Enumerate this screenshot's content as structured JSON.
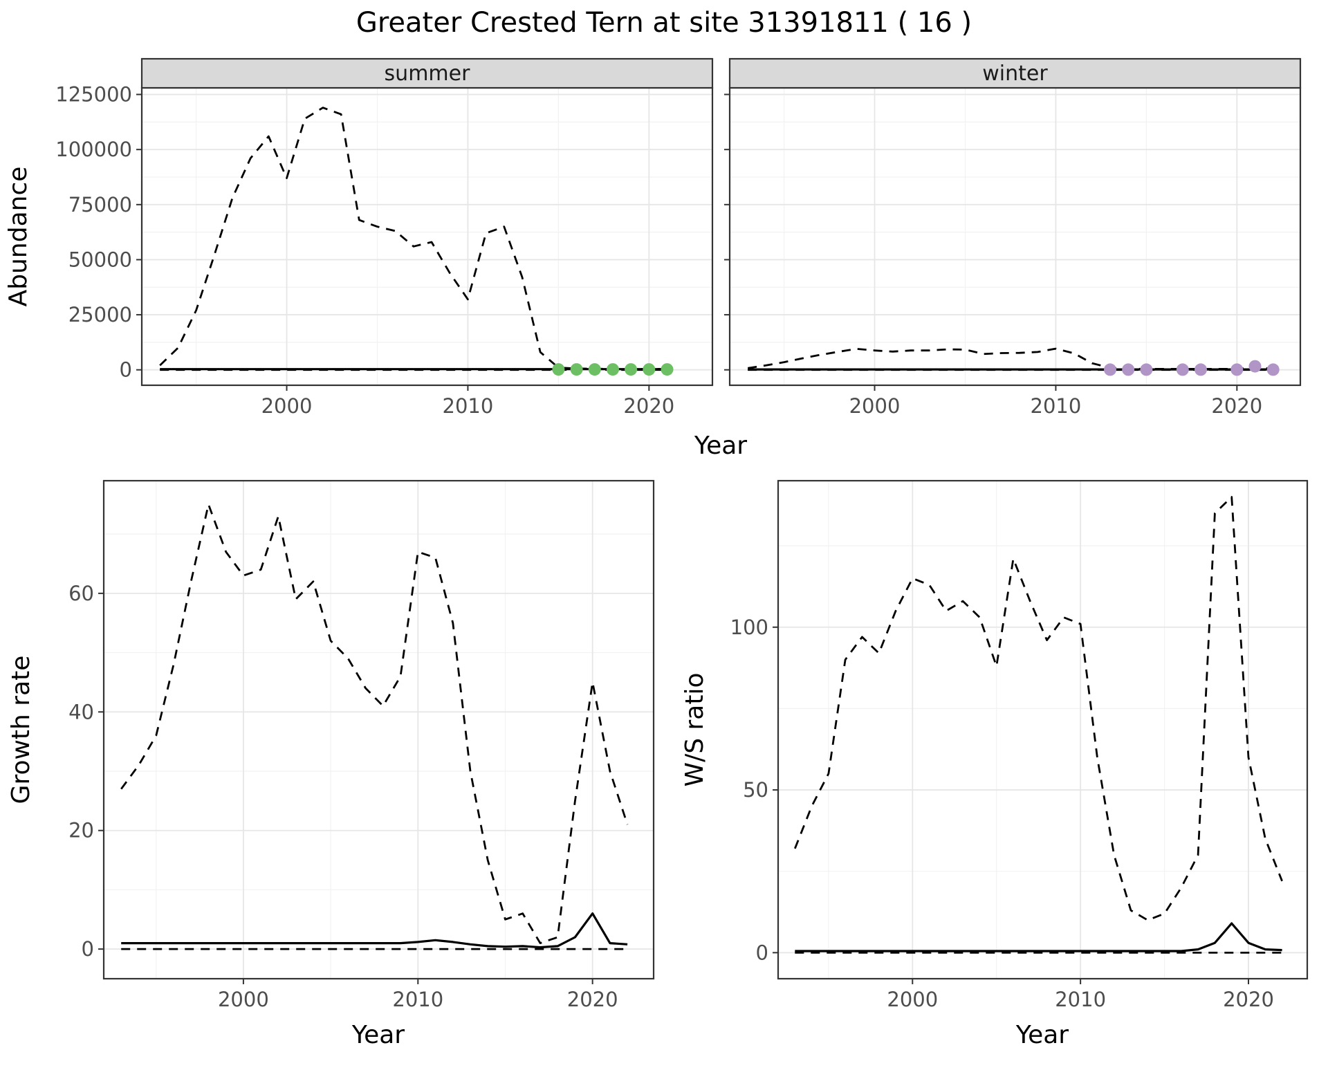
{
  "title": "Greater Crested Tern at site 31391811 ( 16 )",
  "colors": {
    "strip_fill": "#d9d9d9",
    "panel_border": "#333333",
    "grid_major": "#e6e6e6",
    "grid_minor": "#f2f2f2",
    "line": "#000000",
    "tick_text": "#4d4d4d",
    "summer_points": "#6dbf63",
    "winter_points": "#b295c7"
  },
  "chart_data": [
    {
      "id": "abundance-summer",
      "type": "line",
      "strip": "summer",
      "xlabel": "Year",
      "ylabel": "Abundance",
      "x_domain": [
        1992,
        2023.5
      ],
      "y_domain": [
        -7000,
        128000
      ],
      "xticks": [
        2000,
        2010,
        2020
      ],
      "xtick_labels": [
        "2000",
        "2010",
        "2020"
      ],
      "yticks": [
        0,
        25000,
        50000,
        75000,
        100000,
        125000
      ],
      "ytick_labels": [
        "0",
        "25000",
        "50000",
        "75000",
        "100000",
        "125000"
      ],
      "x_minor": [
        1995,
        2005,
        2015
      ],
      "y_minor": [
        12500,
        37500,
        62500,
        87500,
        112500
      ],
      "series": [
        {
          "name": "upper-dashed-line",
          "style": "dashed",
          "x": [
            1993,
            1994,
            1995,
            1996,
            1997,
            1998,
            1999,
            2000,
            2001,
            2002,
            2003,
            2004,
            2005,
            2006,
            2007,
            2008,
            2009,
            2010,
            2011,
            2012,
            2013,
            2014,
            2015,
            2016,
            2017,
            2018,
            2019,
            2020,
            2021
          ],
          "y": [
            2000,
            10000,
            27000,
            52000,
            78000,
            96000,
            106000,
            87000,
            114000,
            119000,
            116000,
            68000,
            65000,
            63000,
            56000,
            58000,
            44000,
            32000,
            62000,
            65000,
            42000,
            8000,
            1000,
            600,
            500,
            400,
            400,
            400,
            400
          ]
        },
        {
          "name": "solid-line",
          "style": "solid",
          "x": [
            1993,
            1994,
            1995,
            1996,
            1997,
            1998,
            1999,
            2000,
            2001,
            2002,
            2003,
            2004,
            2005,
            2006,
            2007,
            2008,
            2009,
            2010,
            2011,
            2012,
            2013,
            2014,
            2015,
            2016,
            2017,
            2018,
            2019,
            2020,
            2021
          ],
          "y": [
            300,
            300,
            300,
            300,
            300,
            300,
            300,
            300,
            300,
            300,
            300,
            300,
            300,
            300,
            300,
            300,
            300,
            300,
            300,
            300,
            300,
            300,
            300,
            300,
            300,
            300,
            300,
            300,
            300
          ]
        },
        {
          "name": "lower-dashed-line",
          "style": "dashed",
          "x": [
            1993,
            1994,
            1995,
            1996,
            1997,
            1998,
            1999,
            2000,
            2001,
            2002,
            2003,
            2004,
            2005,
            2006,
            2007,
            2008,
            2009,
            2010,
            2011,
            2012,
            2013,
            2014,
            2015,
            2016,
            2017,
            2018,
            2019,
            2020,
            2021
          ],
          "y": [
            0,
            0,
            0,
            0,
            0,
            0,
            0,
            0,
            0,
            0,
            0,
            0,
            0,
            0,
            0,
            0,
            0,
            0,
            0,
            0,
            0,
            0,
            0,
            0,
            0,
            0,
            0,
            0,
            0
          ]
        }
      ],
      "points": [
        {
          "name": "summer-survey-point",
          "color": "#6dbf63",
          "x": [
            2015,
            2016,
            2017,
            2018,
            2019,
            2020,
            2021
          ],
          "y": [
            200,
            200,
            200,
            200,
            200,
            200,
            200
          ]
        }
      ]
    },
    {
      "id": "abundance-winter",
      "type": "line",
      "strip": "winter",
      "xlabel": "Year",
      "ylabel": "Abundance",
      "x_domain": [
        1992,
        2023.5
      ],
      "y_domain": [
        -7000,
        128000
      ],
      "xticks": [
        2000,
        2010,
        2020
      ],
      "xtick_labels": [
        "2000",
        "2010",
        "2020"
      ],
      "yticks": [
        0,
        25000,
        50000,
        75000,
        100000,
        125000
      ],
      "ytick_labels": [
        "0",
        "25000",
        "50000",
        "75000",
        "100000",
        "125000"
      ],
      "x_minor": [
        1995,
        2005,
        2015
      ],
      "y_minor": [
        12500,
        37500,
        62500,
        87500,
        112500
      ],
      "series": [
        {
          "name": "upper-dashed-line",
          "style": "dashed",
          "x": [
            1993,
            1994,
            1995,
            1996,
            1997,
            1998,
            1999,
            2000,
            2001,
            2002,
            2003,
            2004,
            2005,
            2006,
            2007,
            2008,
            2009,
            2010,
            2011,
            2012,
            2013,
            2014,
            2015,
            2016,
            2017,
            2018,
            2019,
            2020,
            2021,
            2022
          ],
          "y": [
            800,
            2000,
            3500,
            5200,
            6800,
            8200,
            9500,
            8800,
            8300,
            8800,
            8800,
            9300,
            9200,
            7200,
            7600,
            7700,
            8100,
            9600,
            7500,
            3000,
            900,
            500,
            400,
            400,
            400,
            400,
            400,
            400,
            1200,
            400
          ]
        },
        {
          "name": "solid-line",
          "style": "solid",
          "x": [
            1993,
            1994,
            1995,
            1996,
            1997,
            1998,
            1999,
            2000,
            2001,
            2002,
            2003,
            2004,
            2005,
            2006,
            2007,
            2008,
            2009,
            2010,
            2011,
            2012,
            2013,
            2014,
            2015,
            2016,
            2017,
            2018,
            2019,
            2020,
            2021,
            2022
          ],
          "y": [
            200,
            200,
            200,
            200,
            200,
            200,
            200,
            200,
            200,
            200,
            200,
            200,
            200,
            200,
            200,
            200,
            200,
            200,
            200,
            200,
            200,
            200,
            200,
            200,
            200,
            200,
            200,
            200,
            200,
            200
          ]
        },
        {
          "name": "lower-dashed-line",
          "style": "dashed",
          "x": [
            1993,
            1994,
            1995,
            1996,
            1997,
            1998,
            1999,
            2000,
            2001,
            2002,
            2003,
            2004,
            2005,
            2006,
            2007,
            2008,
            2009,
            2010,
            2011,
            2012,
            2013,
            2014,
            2015,
            2016,
            2017,
            2018,
            2019,
            2020,
            2021,
            2022
          ],
          "y": [
            0,
            0,
            0,
            0,
            0,
            0,
            0,
            0,
            0,
            0,
            0,
            0,
            0,
            0,
            0,
            0,
            0,
            0,
            0,
            0,
            0,
            0,
            0,
            0,
            0,
            0,
            0,
            0,
            0,
            0
          ]
        }
      ],
      "points": [
        {
          "name": "winter-survey-point",
          "color": "#b295c7",
          "x": [
            2013,
            2014,
            2015,
            2017,
            2018,
            2020,
            2021,
            2022
          ],
          "y": [
            100,
            100,
            100,
            100,
            100,
            100,
            1600,
            100
          ]
        }
      ]
    },
    {
      "id": "growth-rate",
      "type": "line",
      "xlabel": "Year",
      "ylabel": "Growth rate",
      "x_domain": [
        1992,
        2023.5
      ],
      "y_domain": [
        -5,
        79
      ],
      "xticks": [
        2000,
        2010,
        2020
      ],
      "xtick_labels": [
        "2000",
        "2010",
        "2020"
      ],
      "yticks": [
        0,
        20,
        40,
        60
      ],
      "ytick_labels": [
        "0",
        "20",
        "40",
        "60"
      ],
      "x_minor": [
        1995,
        2005,
        2015
      ],
      "y_minor": [
        10,
        30,
        50,
        70
      ],
      "series": [
        {
          "name": "upper-dashed-line",
          "style": "dashed",
          "x": [
            1993,
            1994,
            1995,
            1996,
            1997,
            1998,
            1999,
            2000,
            2001,
            2002,
            2003,
            2004,
            2005,
            2006,
            2007,
            2008,
            2009,
            2010,
            2011,
            2012,
            2013,
            2014,
            2015,
            2016,
            2017,
            2018,
            2019,
            2020,
            2021,
            2022
          ],
          "y": [
            27,
            31,
            36,
            48,
            62,
            75,
            67,
            63,
            64,
            73,
            59,
            62,
            52,
            49,
            44,
            41,
            46,
            67,
            66,
            55,
            30,
            15,
            5,
            6,
            1,
            2,
            25,
            45,
            30,
            21
          ]
        },
        {
          "name": "solid-line",
          "style": "solid",
          "x": [
            1993,
            1994,
            1995,
            1996,
            1997,
            1998,
            1999,
            2000,
            2001,
            2002,
            2003,
            2004,
            2005,
            2006,
            2007,
            2008,
            2009,
            2010,
            2011,
            2012,
            2013,
            2014,
            2015,
            2016,
            2017,
            2018,
            2019,
            2020,
            2021,
            2022
          ],
          "y": [
            1,
            1,
            1,
            1,
            1,
            1,
            1,
            1,
            1,
            1,
            1,
            1,
            1,
            1,
            1,
            1,
            1,
            1.2,
            1.5,
            1.2,
            0.8,
            0.5,
            0.4,
            0.5,
            0.3,
            0.5,
            2,
            6,
            1,
            0.8
          ]
        },
        {
          "name": "lower-dashed-line",
          "style": "dashed",
          "x": [
            1993,
            1994,
            1995,
            1996,
            1997,
            1998,
            1999,
            2000,
            2001,
            2002,
            2003,
            2004,
            2005,
            2006,
            2007,
            2008,
            2009,
            2010,
            2011,
            2012,
            2013,
            2014,
            2015,
            2016,
            2017,
            2018,
            2019,
            2020,
            2021,
            2022
          ],
          "y": [
            0,
            0,
            0,
            0,
            0,
            0,
            0,
            0,
            0,
            0,
            0,
            0,
            0,
            0,
            0,
            0,
            0,
            0,
            0,
            0,
            0,
            0,
            0,
            0,
            0,
            0,
            0,
            0,
            0,
            0
          ]
        }
      ],
      "points": []
    },
    {
      "id": "ws-ratio",
      "type": "line",
      "xlabel": "Year",
      "ylabel": "W/S ratio",
      "x_domain": [
        1992,
        2023.5
      ],
      "y_domain": [
        -8,
        145
      ],
      "xticks": [
        2000,
        2010,
        2020
      ],
      "xtick_labels": [
        "2000",
        "2010",
        "2020"
      ],
      "yticks": [
        0,
        50,
        100
      ],
      "ytick_labels": [
        "0",
        "50",
        "100"
      ],
      "x_minor": [
        1995,
        2005,
        2015
      ],
      "y_minor": [
        25,
        75,
        125
      ],
      "series": [
        {
          "name": "upper-dashed-line",
          "style": "dashed",
          "x": [
            1993,
            1994,
            1995,
            1996,
            1997,
            1998,
            1999,
            2000,
            2001,
            2002,
            2003,
            2004,
            2005,
            2006,
            2007,
            2008,
            2009,
            2010,
            2011,
            2012,
            2013,
            2014,
            2015,
            2016,
            2017,
            2018,
            2019,
            2020,
            2021,
            2022
          ],
          "y": [
            32,
            45,
            55,
            90,
            97,
            92,
            105,
            115,
            113,
            105,
            108,
            103,
            88,
            121,
            108,
            96,
            103,
            101,
            60,
            30,
            13,
            10,
            12,
            20,
            30,
            135,
            140,
            60,
            35,
            22
          ]
        },
        {
          "name": "solid-line",
          "style": "solid",
          "x": [
            1993,
            1994,
            1995,
            1996,
            1997,
            1998,
            1999,
            2000,
            2001,
            2002,
            2003,
            2004,
            2005,
            2006,
            2007,
            2008,
            2009,
            2010,
            2011,
            2012,
            2013,
            2014,
            2015,
            2016,
            2017,
            2018,
            2019,
            2020,
            2021,
            2022
          ],
          "y": [
            0.5,
            0.5,
            0.5,
            0.5,
            0.5,
            0.5,
            0.5,
            0.5,
            0.5,
            0.5,
            0.5,
            0.5,
            0.5,
            0.5,
            0.5,
            0.5,
            0.5,
            0.5,
            0.5,
            0.5,
            0.5,
            0.5,
            0.5,
            0.5,
            1,
            3,
            9,
            3,
            1,
            0.8
          ]
        },
        {
          "name": "lower-dashed-line",
          "style": "dashed",
          "x": [
            1993,
            1994,
            1995,
            1996,
            1997,
            1998,
            1999,
            2000,
            2001,
            2002,
            2003,
            2004,
            2005,
            2006,
            2007,
            2008,
            2009,
            2010,
            2011,
            2012,
            2013,
            2014,
            2015,
            2016,
            2017,
            2018,
            2019,
            2020,
            2021,
            2022
          ],
          "y": [
            0,
            0,
            0,
            0,
            0,
            0,
            0,
            0,
            0,
            0,
            0,
            0,
            0,
            0,
            0,
            0,
            0,
            0,
            0,
            0,
            0,
            0,
            0,
            0,
            0,
            0,
            0,
            0,
            0,
            0
          ]
        }
      ],
      "points": []
    }
  ]
}
